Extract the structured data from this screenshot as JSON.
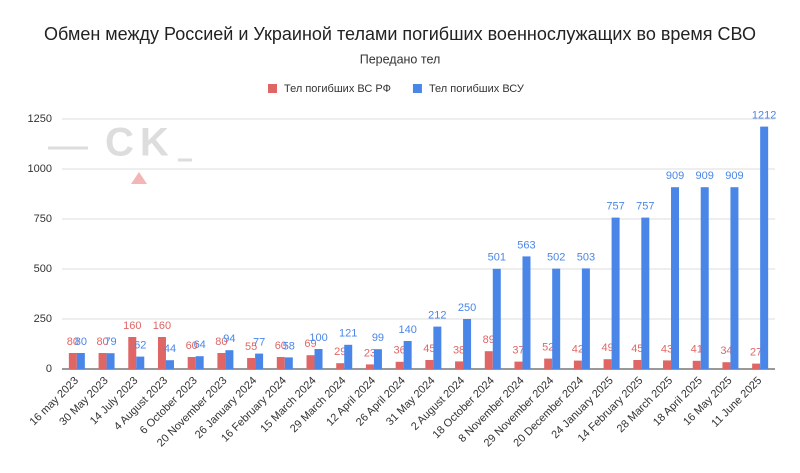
{
  "chart_data": {
    "type": "bar",
    "title": "Обмен между Россией и Украиной телами погибших военнослужащих во время СВО",
    "subtitle": "Передано тел",
    "watermark": "CK",
    "categories": [
      "16 may 2023",
      "30 May 2023",
      "14 July 2023",
      "4 August 2023",
      "6 October 2023",
      "20 November 2023",
      "26 January 2024",
      "16 February 2024",
      "15 March 2024",
      "29 March 2024",
      "12 April 2024",
      "26 April 2024",
      "31 May 2024",
      "2 August 2024",
      "18 October 2024",
      "8 November 2024",
      "29 November 2024",
      "20 December 2024",
      "24 January 2025",
      "14 February 2025",
      "28 March 2025",
      "18 April 2025",
      "16 May 2025",
      "11 June 2025"
    ],
    "series": [
      {
        "name": "Тел погибших ВС  РФ",
        "color": "#e06666",
        "values": [
          80,
          80,
          160,
          160,
          60,
          80,
          55,
          60,
          69,
          29,
          23,
          36,
          45,
          38,
          89,
          37,
          52,
          42,
          49,
          45,
          43,
          41,
          34,
          27
        ]
      },
      {
        "name": "Тел погибших ВСУ",
        "color": "#4a86e8",
        "values": [
          80,
          79,
          62,
          44,
          64,
          94,
          77,
          58,
          100,
          121,
          99,
          140,
          212,
          250,
          501,
          563,
          502,
          503,
          757,
          757,
          909,
          909,
          909,
          1212
        ]
      }
    ],
    "ylim": [
      0,
      1250
    ],
    "yticks": [
      0,
      250,
      500,
      750,
      1000,
      1250
    ],
    "grid": true,
    "legend": "top"
  }
}
